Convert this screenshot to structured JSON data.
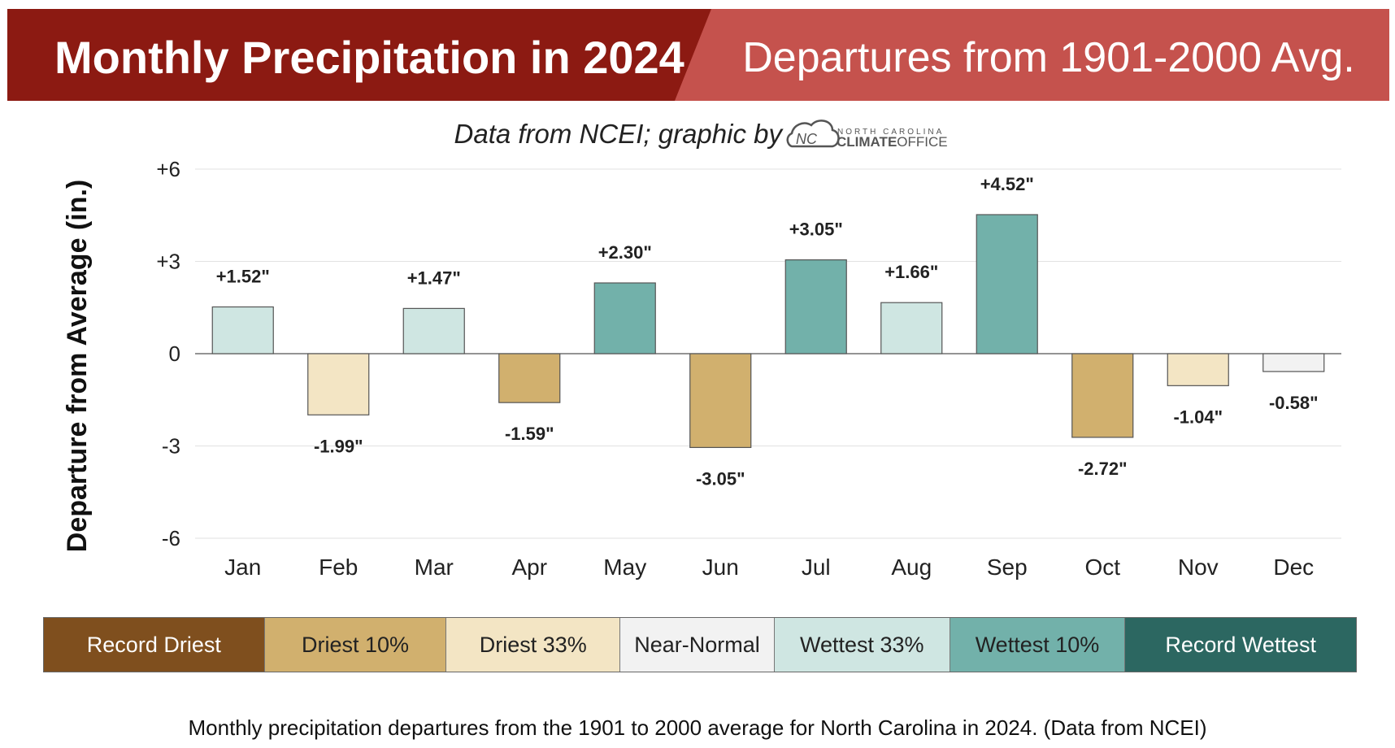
{
  "header": {
    "title_left": "Monthly Precipitation in 2024",
    "title_right": "Departures from 1901-2000 Avg.",
    "subtitle": "Data from NCEI; graphic by",
    "logo_top": "NORTH CAROLINA",
    "logo_bold": "CLIMATE",
    "logo_light": "OFFICE",
    "colors": {
      "left_banner": "#8c1a12",
      "right_banner": "#c5524d"
    }
  },
  "chart_data": {
    "type": "bar",
    "categories": [
      "Jan",
      "Feb",
      "Mar",
      "Apr",
      "May",
      "Jun",
      "Jul",
      "Aug",
      "Sep",
      "Oct",
      "Nov",
      "Dec"
    ],
    "values": [
      1.52,
      -1.99,
      1.47,
      -1.59,
      2.3,
      -3.05,
      3.05,
      1.66,
      4.52,
      -2.72,
      -1.04,
      -0.58
    ],
    "value_labels": [
      "+1.52\"",
      "-1.99\"",
      "+1.47\"",
      "-1.59\"",
      "+2.30\"",
      "-3.05\"",
      "+3.05\"",
      "+1.66\"",
      "+4.52\"",
      "-2.72\"",
      "-1.04\"",
      "-0.58\""
    ],
    "categories_class": [
      "wettest33",
      "driest33",
      "wettest33",
      "driest10",
      "wettest10",
      "driest10",
      "wettest10",
      "wettest33",
      "wettest10",
      "driest10",
      "driest33",
      "near_normal"
    ],
    "ylabel": "Departure from Average (in.)",
    "xlabel": "",
    "ylim": [
      -6,
      6
    ],
    "yticks": [
      6,
      3,
      0,
      -3,
      -6
    ],
    "ytick_labels": [
      "+6",
      "+3",
      "0",
      "-3",
      "-6"
    ],
    "grid": true
  },
  "legend": {
    "items": [
      {
        "label": "Record Driest",
        "color": "#7f4f1e",
        "text_color": "#ffffff"
      },
      {
        "label": "Driest 10%",
        "color": "#d1b06e",
        "text_color": "#222222"
      },
      {
        "label": "Driest 33%",
        "color": "#f3e5c4",
        "text_color": "#222222"
      },
      {
        "label": "Near-Normal",
        "color": "#f2f2f2",
        "text_color": "#222222"
      },
      {
        "label": "Wettest 33%",
        "color": "#cfe6e2",
        "text_color": "#222222"
      },
      {
        "label": "Wettest 10%",
        "color": "#72b1aa",
        "text_color": "#222222"
      },
      {
        "label": "Record Wettest",
        "color": "#2c6761",
        "text_color": "#ffffff"
      }
    ]
  },
  "class_colors": {
    "driest10": "#d1b06e",
    "driest33": "#f3e5c4",
    "near_normal": "#f2f2f2",
    "wettest33": "#cfe6e2",
    "wettest10": "#72b1aa"
  },
  "caption": "Monthly precipitation departures from the 1901 to 2000 average for North Carolina in 2024. (Data from NCEI)"
}
